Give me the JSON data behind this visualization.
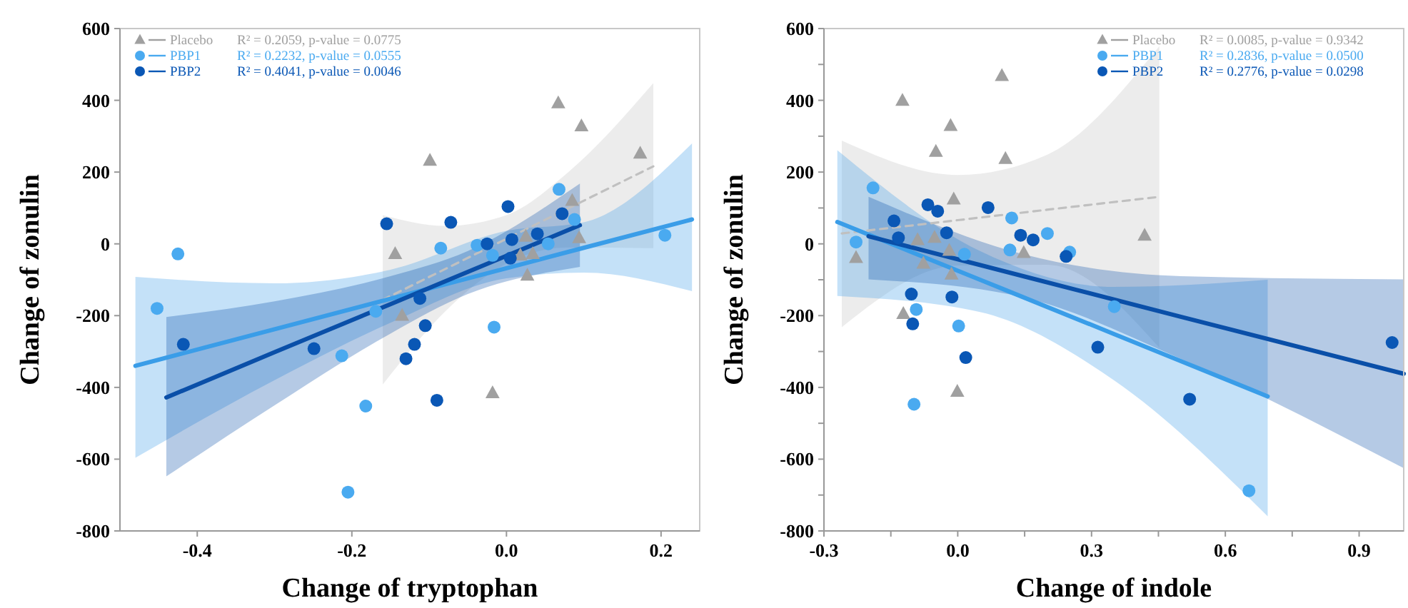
{
  "chart_data": [
    {
      "type": "scatter",
      "xlabel": "Change of tryptophan",
      "ylabel": "Change of zonulin",
      "xlim": [
        -0.5,
        0.25
      ],
      "ylim": [
        -800,
        600
      ],
      "xticks": [
        -0.4,
        -0.2,
        {
          "value": 0,
          "label": "0.0"
        },
        0.2
      ],
      "yticks": [
        -800,
        -600,
        -400,
        -200,
        0,
        200,
        400,
        600
      ],
      "legend": "top left",
      "annotations": [
        "R² = 0.2059, p-value = 0.0775",
        "R² = 0.2232, p-value = 0.0555",
        "R² = 0.4041, p-value = 0.0046"
      ],
      "series": [
        {
          "type": "scatter",
          "name": "Placebo",
          "color": "#a0a0a0",
          "marker": "triangle",
          "x": [
            0.067,
            0.097,
            -0.099,
            0.173,
            -0.144,
            0.085,
            0.025,
            0.027,
            0.034,
            0.094,
            0.018,
            -0.135,
            -0.018
          ],
          "values": [
            392,
            328,
            232,
            252,
            -28,
            120,
            20,
            -88,
            -28,
            16,
            -32,
            -200,
            -416
          ]
        },
        {
          "type": "scatter",
          "name": "PBP1",
          "color": "#4aaaf0",
          "marker": "circle",
          "x": [
            -0.425,
            -0.452,
            0.068,
            0.205,
            -0.085,
            -0.038,
            -0.018,
            0.054,
            0.088,
            -0.016,
            -0.213,
            -0.182,
            -0.205,
            -0.169
          ],
          "values": [
            -28,
            -180,
            152,
            24,
            -12,
            -4,
            -32,
            0,
            68,
            -232,
            -312,
            -452,
            -692,
            -188
          ]
        },
        {
          "type": "scatter",
          "name": "PBP2",
          "color": "#0a57b5",
          "marker": "circle",
          "x": [
            -0.155,
            -0.072,
            0.002,
            0.072,
            -0.025,
            0.007,
            0.04,
            0.005,
            -0.112,
            -0.418,
            -0.249,
            -0.105,
            -0.119,
            -0.13,
            -0.09
          ],
          "values": [
            56,
            60,
            104,
            84,
            0,
            12,
            28,
            -40,
            -152,
            -280,
            -292,
            -228,
            -280,
            -320,
            -436
          ]
        },
        {
          "type": "line",
          "color": "#c0c0c0",
          "line_style": "dashed",
          "x": [
            -0.16,
            -0.08,
            0,
            0.08,
            0.19
          ],
          "values": [
            -156,
            -71,
            14,
            99,
            216
          ],
          "lower": [
            -392,
            -190,
            -55,
            -10,
            -12
          ],
          "upper": [
            80,
            50,
            80,
            200,
            448
          ]
        },
        {
          "type": "line",
          "color": "#3a9de8",
          "line_style": "solid",
          "x": [
            -0.48,
            -0.3,
            -0.15,
            0,
            0.1,
            0.24
          ],
          "values": [
            -340,
            -238,
            -153,
            -68,
            -11,
            68
          ],
          "lower": [
            -596,
            -380,
            -220,
            -96,
            -80,
            -132
          ],
          "upper": [
            -92,
            -110,
            -72,
            36,
            60,
            280
          ]
        },
        {
          "type": "line",
          "color": "#0a4fa8",
          "line_style": "solid",
          "x": [
            -0.44,
            -0.3,
            -0.15,
            -0.05,
            0.095
          ],
          "values": [
            -428,
            -302,
            -168,
            -78,
            52
          ],
          "lower": [
            -648,
            -450,
            -250,
            -140,
            -64
          ],
          "upper": [
            -204,
            -160,
            -90,
            -20,
            168
          ]
        }
      ]
    },
    {
      "type": "scatter",
      "xlabel": "Change of indole",
      "ylabel": "Change of zonulin",
      "xlim": [
        -0.3,
        1.0
      ],
      "ylim": [
        -800,
        600
      ],
      "xticks": [
        -0.3,
        {
          "value": -0.15,
          "label": null
        },
        {
          "value": 0,
          "label": "0.0"
        },
        {
          "value": 0.15,
          "label": null
        },
        0.3,
        {
          "value": 0.45,
          "label": null
        },
        0.6,
        {
          "value": 0.75,
          "label": null
        },
        0.9
      ],
      "yticks": [
        -800,
        {
          "value": -700,
          "label": null
        },
        -600,
        {
          "value": -500,
          "label": null
        },
        -400,
        {
          "value": -300,
          "label": null
        },
        -200,
        {
          "value": -100,
          "label": null
        },
        0,
        {
          "value": 100,
          "label": null
        },
        200,
        {
          "value": 300,
          "label": null
        },
        400,
        {
          "value": 500,
          "label": null
        },
        600
      ],
      "legend": "top right",
      "annotations": [
        "R² = 0.0085, p-value = 0.9342",
        "R² = 0.2836, p-value = 0.0500",
        "R² = 0.2776, p-value = 0.0298"
      ],
      "series": [
        {
          "type": "scatter",
          "name": "Placebo",
          "color": "#a0a0a0",
          "marker": "triangle",
          "x": [
            -0.124,
            0.099,
            -0.016,
            -0.049,
            0.107,
            -0.009,
            -0.052,
            -0.09,
            -0.228,
            -0.077,
            -0.014,
            -0.019,
            0.148,
            0.419,
            -0.122,
            -0.001
          ],
          "values": [
            399,
            468,
            329,
            257,
            237,
            124,
            17,
            11,
            -39,
            -55,
            -85,
            -19,
            -25,
            23,
            -195,
            -412
          ]
        },
        {
          "type": "scatter",
          "name": "PBP1",
          "color": "#4aaaf0",
          "marker": "circle",
          "x": [
            -0.19,
            -0.228,
            0.121,
            0.201,
            0.117,
            0.015,
            0.251,
            0.351,
            -0.093,
            0.002,
            -0.098,
            0.653
          ],
          "values": [
            156,
            5,
            72,
            29,
            -17,
            -29,
            -23,
            -175,
            -183,
            -229,
            -447,
            -688
          ]
        },
        {
          "type": "scatter",
          "name": "PBP2",
          "color": "#0a57b5",
          "marker": "circle",
          "x": [
            -0.143,
            -0.067,
            -0.045,
            0.068,
            -0.025,
            0.141,
            0.169,
            -0.133,
            0.243,
            -0.104,
            -0.013,
            -0.101,
            0.018,
            0.314,
            0.52,
            0.974
          ],
          "values": [
            64,
            109,
            91,
            101,
            31,
            24,
            11,
            17,
            -35,
            -140,
            -148,
            -223,
            -317,
            -288,
            -433,
            -275
          ]
        },
        {
          "type": "line",
          "color": "#c0c0c0",
          "line_style": "dashed",
          "x": [
            -0.26,
            0,
            0.2,
            0.452
          ],
          "values": [
            29,
            66,
            95,
            131
          ],
          "lower": [
            -232,
            -60,
            -58,
            -289
          ],
          "upper": [
            288,
            192,
            248,
            551
          ]
        },
        {
          "type": "line",
          "color": "#3a9de8",
          "line_style": "solid",
          "x": [
            -0.27,
            0.05,
            0.35,
            0.695
          ],
          "values": [
            61,
            -100,
            -251,
            -425
          ],
          "lower": [
            -145,
            -190,
            -380,
            -759
          ],
          "upper": [
            261,
            -20,
            -120,
            -100
          ]
        },
        {
          "type": "line",
          "color": "#0a4fa8",
          "line_style": "solid",
          "x": [
            -0.2,
            0.15,
            0.5,
            1.0
          ],
          "values": [
            21,
            -91,
            -203,
            -362
          ],
          "lower": [
            -99,
            -150,
            -320,
            -625
          ],
          "upper": [
            131,
            -30,
            -90,
            -99
          ]
        }
      ]
    }
  ]
}
